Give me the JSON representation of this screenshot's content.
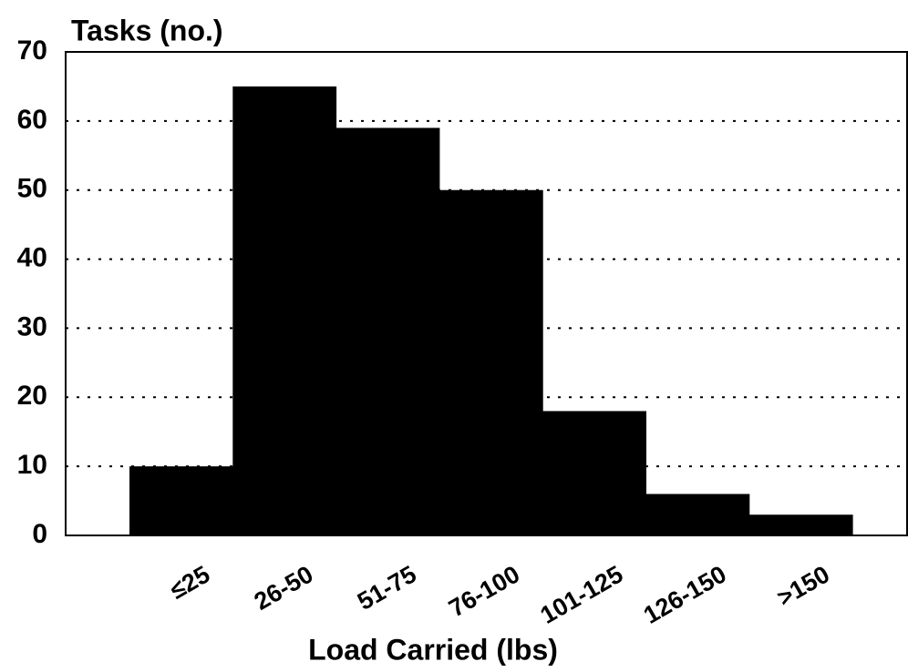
{
  "chart_data": {
    "type": "bar",
    "y_axis_title": "Tasks (no.)",
    "x_axis_title": "Load Carried (lbs)",
    "categories": [
      "≤25",
      "26-50",
      "51-75",
      "76-100",
      "101-125",
      "126-150",
      ">150"
    ],
    "values": [
      10,
      65,
      59,
      50,
      18,
      6,
      3
    ],
    "color": "#000000",
    "ylim": [
      0,
      70
    ],
    "yticks": [
      0,
      10,
      20,
      30,
      40,
      50,
      60,
      70
    ],
    "grid": true
  }
}
